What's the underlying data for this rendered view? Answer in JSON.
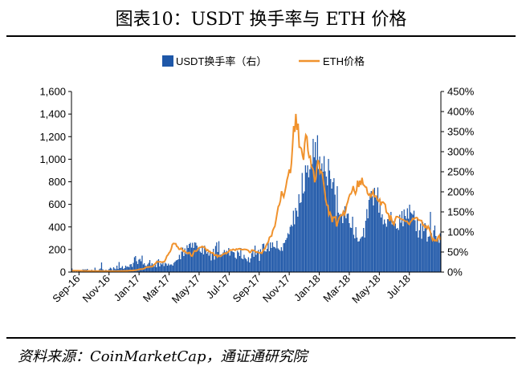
{
  "header": {
    "title": "图表10：USDT 换手率与 ETH 价格"
  },
  "footer": {
    "source": "资料来源：CoinMarketCap，通证通研究院"
  },
  "chart_data": {
    "type": "bar",
    "series": [
      {
        "name": "USDT换手率（右）",
        "type": "bar",
        "axis": "right",
        "color": "#1e57a8",
        "values": [
          0.09,
          0.01,
          0.03,
          0.01,
          0.03,
          0.01,
          0.03,
          0.02,
          0.03,
          0.01,
          0.07,
          0.06,
          0.07,
          0.06,
          0.08,
          0.04,
          0.05,
          0.02,
          0.06,
          0.04,
          0.03,
          0.11,
          0.05,
          0.04,
          0.03,
          0.07,
          0.09,
          0.24,
          0.07,
          0.05,
          0.04,
          0.06,
          0.03,
          0.05,
          0.08,
          0.11,
          0.09,
          0.05,
          0.12,
          0.09,
          0.07,
          0.16,
          0.08,
          0.25,
          0.1,
          0.11,
          0.15,
          0.08,
          0.1,
          0.16,
          0.13,
          0.14,
          0.12,
          0.19,
          0.2,
          0.13,
          0.23,
          0.37,
          0.4,
          0.27,
          0.2,
          0.31,
          0.33,
          0.27,
          0.41,
          0.19,
          0.22,
          0.16,
          0.15,
          0.19,
          0.23,
          0.3,
          0.17,
          0.22,
          0.19,
          0.14,
          0.19,
          0.12,
          0.29,
          0.32,
          0.14,
          0.22,
          0.19,
          0.25,
          0.15,
          0.23,
          0.21,
          0.16,
          0.21,
          0.17,
          0.19,
          0.19,
          0.16,
          0.23,
          0.26,
          0.29,
          0.3,
          0.32,
          0.43,
          0.32,
          0.51,
          0.61,
          0.4,
          0.59,
          0.45,
          0.67,
          0.6,
          0.7,
          0.73,
          0.61,
          0.73,
          0.6,
          0.74,
          0.73,
          0.66,
          0.54,
          0.59,
          0.51,
          0.48,
          0.62,
          0.44,
          0.66,
          0.56,
          0.46,
          0.5,
          0.41,
          0.5,
          0.29,
          0.47,
          0.58,
          0.31,
          0.65,
          0.74,
          0.5,
          0.77,
          0.43,
          0.44,
          0.43,
          0.49,
          0.55,
          0.48,
          0.53,
          0.47,
          0.6,
          0.41,
          0.52,
          0.52,
          0.5,
          0.49,
          0.36,
          0.33,
          0.53,
          0.49,
          0.4,
          0.6,
          0.34,
          0.32,
          0.43,
          0.35,
          0.32,
          0.27,
          0.37,
          0.24,
          0.34,
          0.47,
          0.54,
          0.38,
          0.66,
          0.43,
          0.49,
          0.55,
          0.28,
          0.57,
          0.46,
          0.7,
          0.71,
          0.53,
          0.51,
          0.58,
          0.77,
          0.52,
          0.74,
          0.6,
          0.74,
          0.63,
          0.62,
          0.59,
          0.78,
          0.59,
          0.56,
          0.53,
          0.62,
          0.53,
          0.72,
          0.73,
          0.8,
          0.85,
          0.97,
          0.94,
          1.13,
          1.18,
          1.14,
          1.53,
          1.19,
          1.6,
          1.53,
          1.38,
          1.94,
          1.72,
          1.74,
          2.47,
          1.96,
          2.01,
          2.66,
          2.48,
          2.66,
          2.36,
          2.56,
          2.73,
          2.69,
          3.32,
          2.86,
          3.24,
          2.79,
          3.41,
          2.57,
          2.88,
          2.57,
          2.71,
          2.5,
          2.89,
          2.51,
          2.38,
          2.16,
          2.82,
          2.53,
          2.32,
          2.08,
          2.24,
          2.34,
          1.93,
          1.39,
          2.14,
          1.48,
          1.43,
          1.45,
          1.4,
          1.22,
          1.53,
          1.64,
          1.34,
          1.45,
          1.46,
          1.22,
          1.11,
          1.1,
          1.38,
          0.93,
          0.84,
          1.12,
          0.86,
          0.76,
          0.77,
          0.83,
          0.87,
          0.89,
          1.1,
          0.86,
          1.28,
          1.57,
          1.34,
          1.8,
          1.9,
          2.02,
          1.89,
          1.66,
          2.1,
          1.86,
          1.81,
          2.11,
          1.48,
          1.82,
          1.36,
          1.44,
          1.19,
          1.31,
          1.21,
          1.13,
          1.32,
          1.32,
          1.33,
          1.5,
          1.19,
          1.27,
          1.18,
          1.21,
          1.08,
          1.1,
          1.05,
          1.43,
          1.23,
          1.52,
          1.14,
          1.56,
          1.4,
          1.33,
          1.59,
          1.33,
          1.68,
          1.49,
          1.46,
          1.43,
          1.53,
          1.29,
          1.02,
          1.34,
          0.86,
          1.04,
          1.21,
          0.83,
          1.25,
          1.02,
          1.22,
          1.11,
          0.76,
          0.88,
          0.89,
          1.5,
          0.97,
          0.8,
          1.04,
          1.16,
          0.9,
          0.78,
          0.84,
          0.73,
          0.97
        ],
        "ylim": [
          0,
          4.5
        ]
      },
      {
        "name": "ETH价格",
        "type": "line",
        "axis": "left",
        "color": "#f0922d",
        "values": [
          12.9,
          13.6,
          12.8,
          12.5,
          12.1,
          11.8,
          11.8,
          11.5,
          11.6,
          11.4,
          11.4,
          10.8,
          10.4,
          10.7,
          10.3,
          10.7,
          10.1,
          10.3,
          9.7,
          9.9,
          9.7,
          9.6,
          9.3,
          9.5,
          9.9,
          9.8,
          10.0,
          9.4,
          9.5,
          9.1,
          8.7,
          9.0,
          8.8,
          8.2,
          8.4,
          8.2,
          7.7,
          8.5,
          8.1,
          7.8,
          8.1,
          8.0,
          8.6,
          8.9,
          9.3,
          9.6,
          9.6,
          10.2,
          10.6,
          10.2,
          10.6,
          11.4,
          11.8,
          13.3,
          13.8,
          13.4,
          14.6,
          16.4,
          17.1,
          18.9,
          20.5,
          24.4,
          26.2,
          25.3,
          26.8,
          29.0,
          34.5,
          40.9,
          43.5,
          46.0,
          44.5,
          47.7,
          48.2,
          48.6,
          61.5,
          70.6,
          80.0,
          93.1,
          90.7,
          90.9,
          91.8,
          87.7,
          89.0,
          90.2,
          94.7,
          115.0,
          142.6,
          152.3,
          169.6,
          181.1,
          206.4,
          244.4,
          253.6,
          251.6,
          251.5,
          228.3,
          221.8,
          202.6,
          201.9,
          212.3,
          198.0,
          183.8,
          190.4,
          175.0,
          171.3,
          163.1,
          173.6,
          168.8,
          144.4,
          141.6,
          167.2,
          188.4,
          185.4,
          186.2,
          202.5,
          215.3,
          218.3,
          219.5,
          227.2,
          221.6,
          223.6,
          209.4,
          190.9,
          196.8,
          181.0,
          183.5,
          170.9,
          170.0,
          172.2,
          148.9,
          149.9,
          152.6,
          134.1,
          147.4,
          139.7,
          140.6,
          151.0,
          160.3,
          160.9,
          169.9,
          163.8,
          175.2,
          178.9,
          194.8,
          195.5,
          194.2,
          202.5,
          198.5,
          192.4,
          204.6,
          200.3,
          205.2,
          207.6,
          200.0,
          199.8,
          198.7,
          201.7,
          201.2,
          199.0,
          196.3,
          190.7,
          174.4,
          176.1,
          194.6,
          194.2,
          190.6,
          184.5,
          176.2,
          177.5,
          174.4,
          168.5,
          171.8,
          166.7,
          185.0,
          201.2,
          206.3,
          234.4,
          253.2,
          266.0,
          307.1,
          315.8,
          319.3,
          367.9,
          390.0,
          405.9,
          462.3,
          523.3,
          580.6,
          594.6,
          633.0,
          716.0,
          685.3,
          664.8,
          709.5,
          760.0,
          817.2,
          854.7,
          909.1,
          876.5,
          964.0,
          1121.1,
          1293.3,
          1242.6,
          1401.8,
          1260.1,
          1315.7,
          1106.7,
          1105.6,
          1094.0,
          1032.9,
          994.0,
          1141.2,
          1214.5,
          1198.1,
          1075.4,
          1017.8,
          1025.2,
          935.1,
          922.6,
          895.3,
          795.7,
          825.1,
          923.3,
          991.9,
          963.6,
          876.8,
          891.0,
          875.0,
          795.6,
          729.0,
          643.1,
          593.5,
          590.1,
          507.5,
          527.3,
          496.4,
          442.6,
          486.6,
          484.8,
          488.9,
          403.5,
          441.5,
          477.1,
          493.3,
          505.0,
          502.7,
          534.8,
          507.6,
          532.4,
          593.2,
          621.2,
          660.6,
          689.1,
          693.0,
          719.7,
          762.5,
          719.4,
          692.1,
          722.6,
          810.8,
          753.9,
          810.3,
          771.8,
          835.5,
          775.4,
          766.9,
          754.8,
          750.6,
          697.1,
          682.1,
          692.3,
          668.5,
          692.7,
          717.7,
          668.1,
          672.4,
          672.6,
          639.2,
          627.8,
          645.0,
          590.4,
          618.7,
          620.8,
          610.0,
          598.6,
          532.4,
          519.9,
          516.1,
          452.6,
          503.6,
          456.7,
          431.7,
          419.6,
          465.8,
          491.7,
          490.5,
          487.0,
          481.2,
          471.6,
          470.2,
          464.0,
          459.1,
          451.7,
          448.8,
          450.1,
          428.6,
          423.3,
          446.6,
          454.9,
          475.0,
          469.5,
          477.7,
          482.1,
          481.1,
          460.0,
          460.0,
          458.2,
          455.6,
          416.7,
          417.6,
          396.1,
          408.5,
          385.3,
          405.8,
          382.9,
          352.5,
          316.7,
          281.6,
          294.1,
          277.4,
          282.0,
          275.6,
          312.3,
          323.6,
          283.7
        ]
      }
    ],
    "x_tick_labels": [
      "Sep-16",
      "Nov-16",
      "Jan-17",
      "Mar-17",
      "May-17",
      "Jul-17",
      "Sep-17",
      "Nov-17",
      "Jan-18",
      "Mar-18",
      "May-18",
      "Jul-18"
    ],
    "left_axis": {
      "ylim": [
        0,
        1600
      ],
      "tick_labels": [
        "0",
        "200",
        "400",
        "600",
        "800",
        "1,000",
        "1,200",
        "1,400",
        "1,600"
      ]
    },
    "right_axis": {
      "ylim": [
        0,
        4.5
      ],
      "tick_labels": [
        "0%",
        "50%",
        "100%",
        "150%",
        "200%",
        "250%",
        "300%",
        "350%",
        "400%",
        "450%"
      ]
    },
    "legend": {
      "position": "top-center"
    },
    "grid": false
  }
}
